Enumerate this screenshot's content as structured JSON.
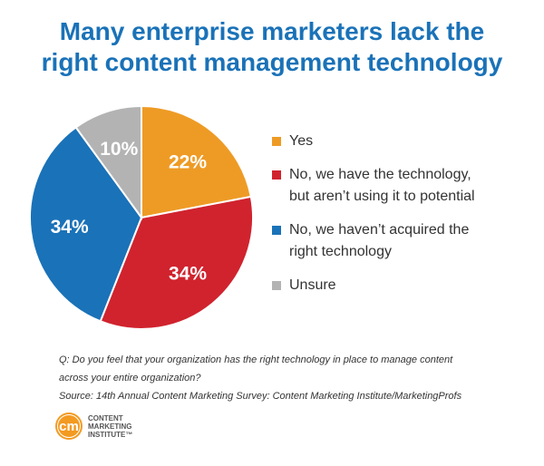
{
  "header": {
    "title_line1": "Many enterprise marketers lack the",
    "title_line2": "right content management technology"
  },
  "chart_data": {
    "type": "pie",
    "title": "Many enterprise marketers lack the right content management technology",
    "slices": [
      {
        "label": "Yes",
        "label_lines": [
          "Yes"
        ],
        "value": 22,
        "display": "22%",
        "color": "#ee9b25"
      },
      {
        "label": "No, we have the technology, but aren’t using it to potential",
        "label_lines": [
          "No, we have the technology,",
          "but aren’t using it to potential"
        ],
        "value": 34,
        "display": "34%",
        "color": "#d0232e"
      },
      {
        "label": "No, we haven’t acquired the right technology",
        "label_lines": [
          "No, we haven’t acquired the",
          "right technology"
        ],
        "value": 34,
        "display": "34%",
        "color": "#1a72b8"
      },
      {
        "label": "Unsure",
        "label_lines": [
          "Unsure"
        ],
        "value": 10,
        "display": "10%",
        "color": "#b3b3b3"
      }
    ],
    "legend_position": "right"
  },
  "footnote": {
    "question_line1": "Q: Do you feel that your organization has the right technology in place to manage content",
    "question_line2": "across your entire organization?",
    "source": "Source: 14th Annual Content Marketing Survey: Content Marketing Institute/MarketingProfs"
  },
  "logo": {
    "mark": "cm",
    "line1": "CONTENT",
    "line2": "MARKETING",
    "line3": "INSTITUTE™",
    "color": "#f39a21"
  }
}
